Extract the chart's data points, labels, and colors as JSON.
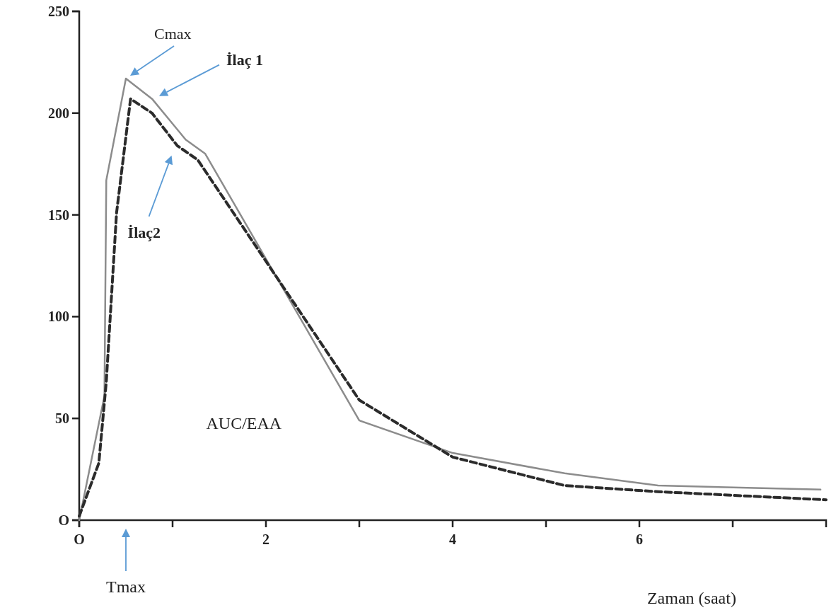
{
  "chart_data": {
    "type": "line",
    "xlabel": "Zaman (saat)",
    "xlim": [
      0,
      8
    ],
    "xticks": [
      {
        "value": 0,
        "label": "O"
      },
      {
        "value": 1,
        "label": null
      },
      2,
      {
        "value": 3,
        "label": null
      },
      4,
      {
        "value": 5,
        "label": null
      },
      6,
      {
        "value": 7,
        "label": null
      }
    ],
    "ylim": [
      0,
      250
    ],
    "yticks": [
      {
        "value": 0,
        "label": "O"
      },
      50,
      100,
      150,
      200,
      250
    ],
    "grid": false,
    "legend": false,
    "marker": "none",
    "series": [
      {
        "name": "İlaç 1",
        "color": "#8c8c8c",
        "line_style": "solid",
        "x": [
          0,
          0.27,
          0.29,
          0.5,
          0.78,
          1.14,
          1.35,
          3.0,
          4.0,
          5.2,
          6.2,
          7.94
        ],
        "values": [
          0,
          61,
          167,
          217,
          207,
          187,
          180,
          49,
          33,
          23,
          17,
          15
        ]
      },
      {
        "name": "İlaç2",
        "color": "#2b2b2b",
        "line_style": "dashed",
        "x": [
          0,
          0.21,
          0.29,
          0.4,
          0.55,
          0.78,
          1.05,
          1.27,
          3.0,
          4.0,
          5.2,
          6.2,
          8.0
        ],
        "values": [
          2,
          28,
          68,
          151,
          207,
          200,
          184,
          177,
          59,
          31,
          17,
          14,
          10
        ]
      }
    ],
    "annotations": [
      {
        "text": "Cmax",
        "x": 0.5,
        "y": 217
      },
      "AUC/EAA",
      "Tmax"
    ]
  }
}
